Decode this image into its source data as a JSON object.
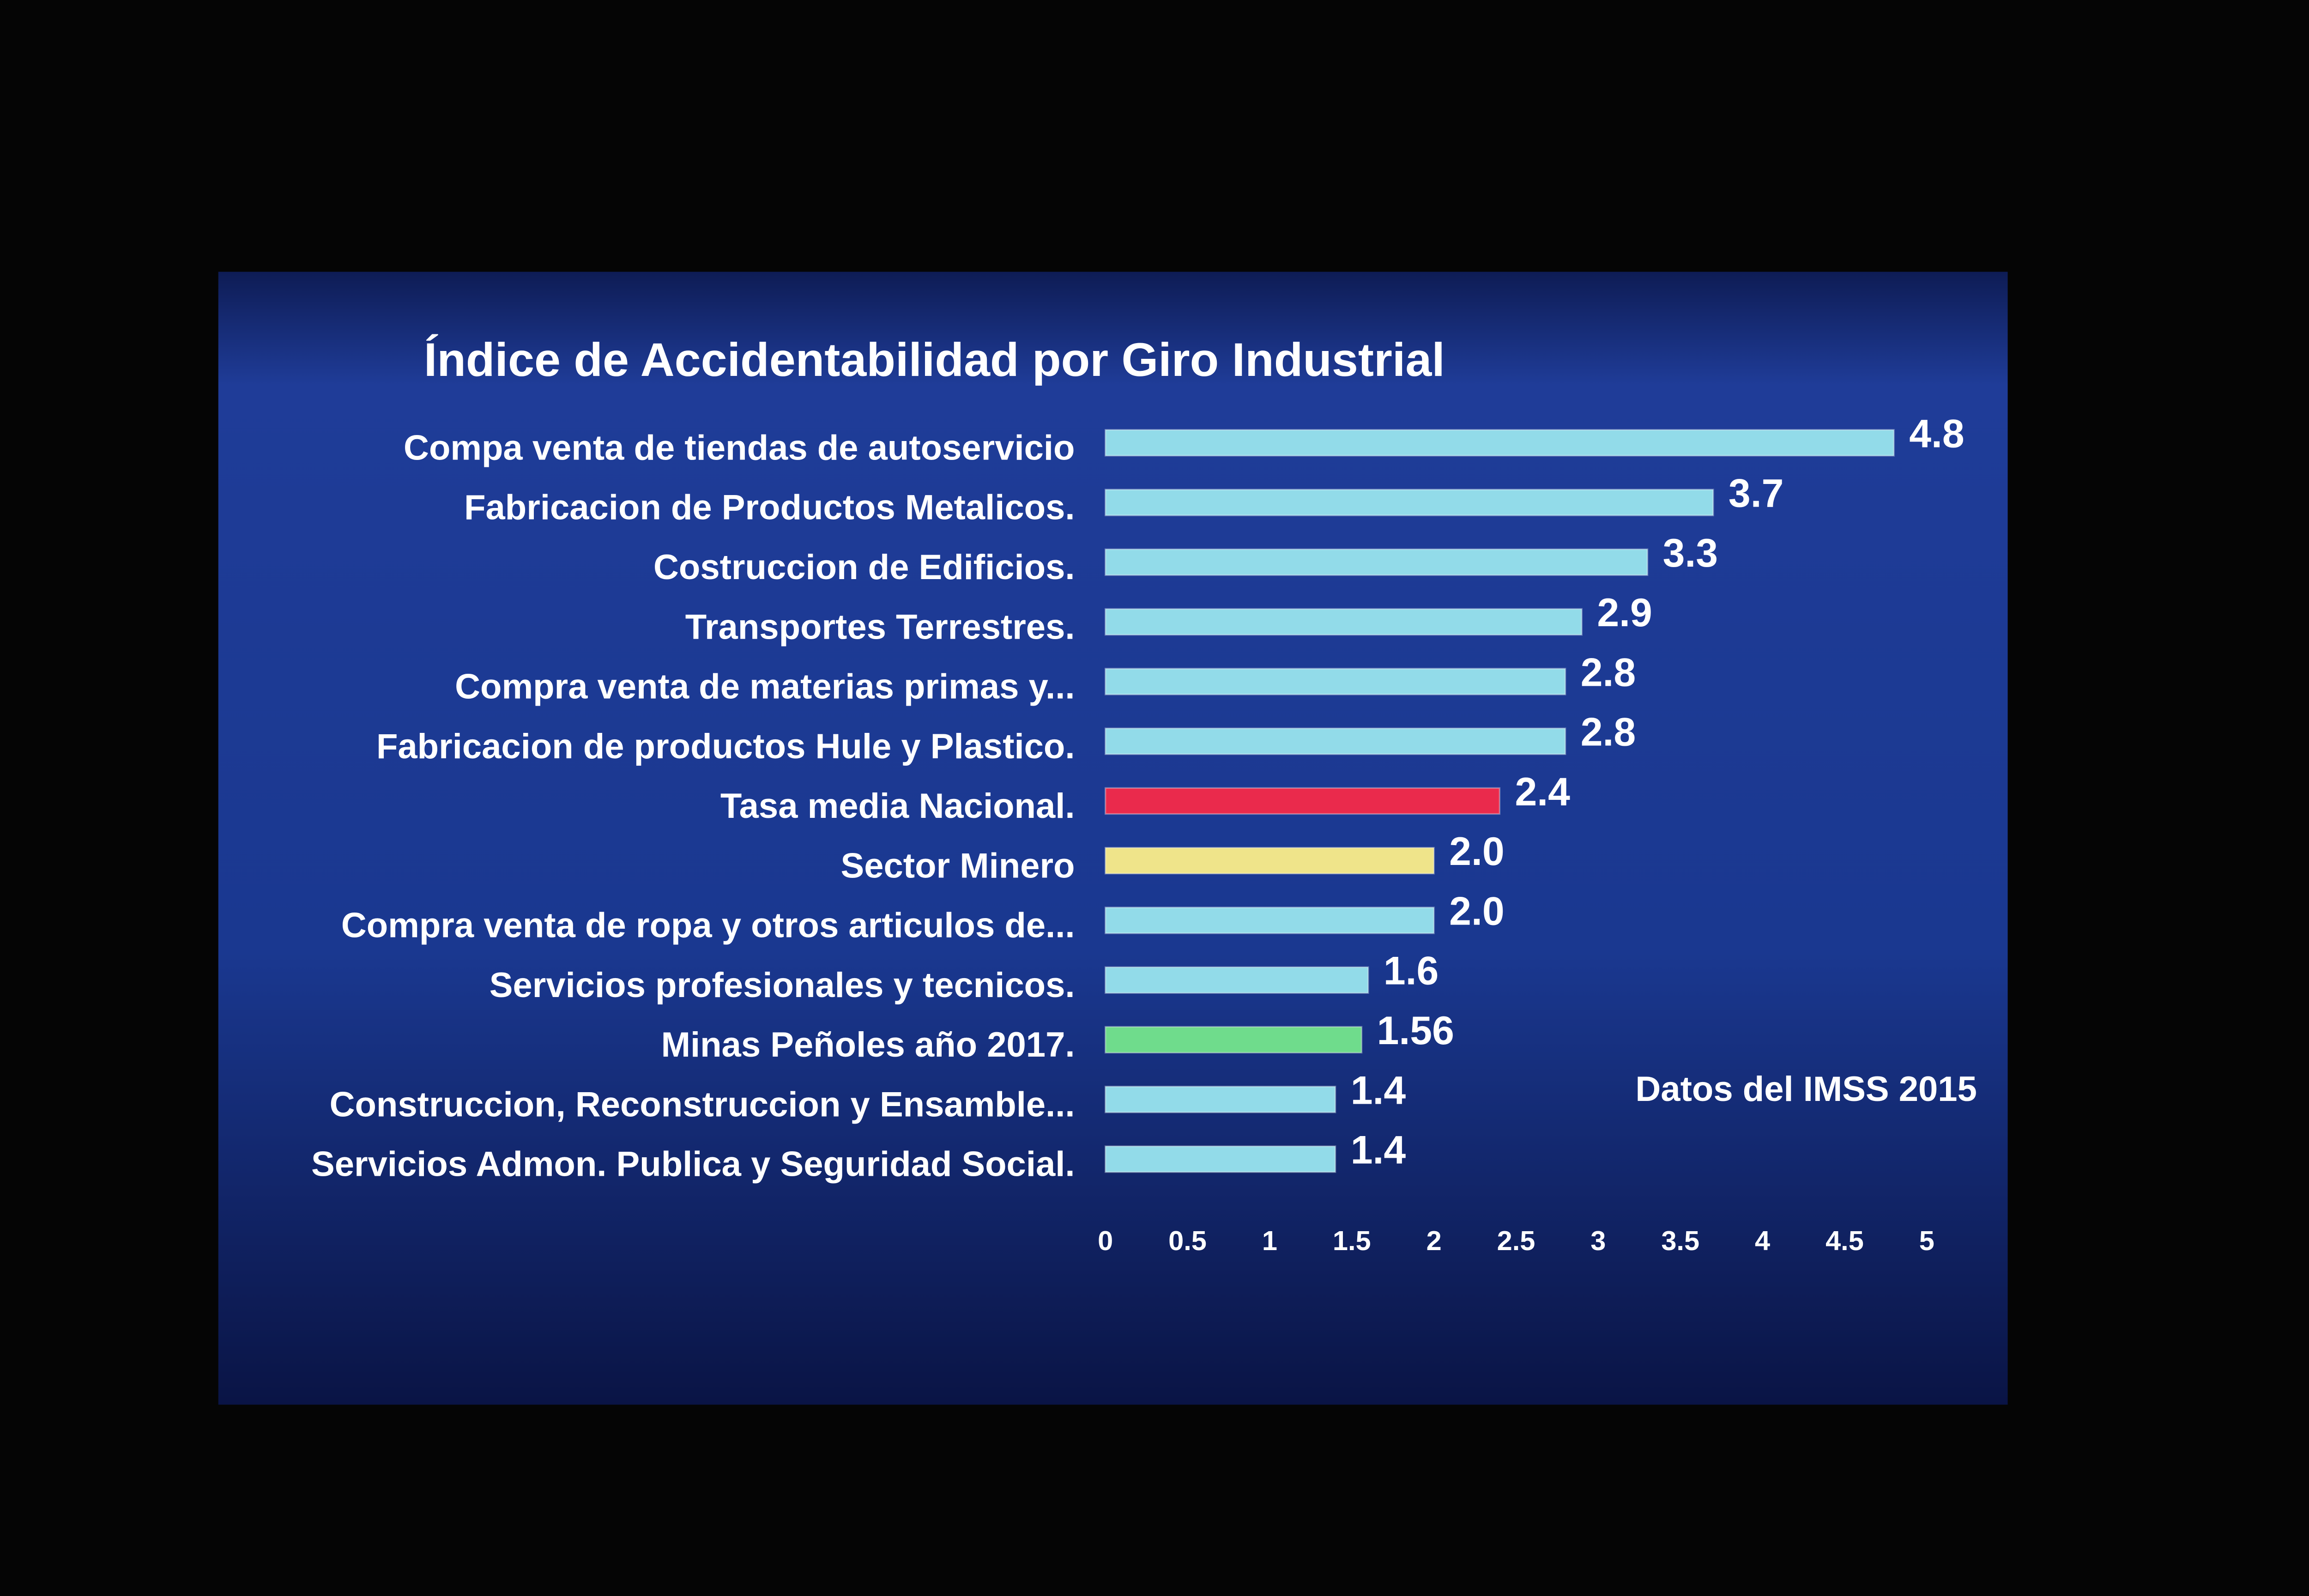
{
  "chart_data": {
    "type": "bar",
    "orientation": "horizontal",
    "title": "Índice de Accidentabilidad por Giro Industrial",
    "annotation": "Datos del IMSS 2015",
    "categories": [
      "Compa venta de tiendas de autoservicio",
      "Fabricacion de Productos Metalicos.",
      "Costruccion de Edificios.",
      "Transportes Terrestres.",
      "Compra venta de materias primas y...",
      "Fabricacion de productos Hule y Plastico.",
      "Tasa media Nacional.",
      "Sector Minero",
      "Compra venta de ropa y otros articulos de...",
      "Servicios profesionales y tecnicos.",
      "Minas Peñoles año 2017.",
      "Construccion, Reconstruccion y Ensamble...",
      "Servicios Admon. Publica y Seguridad Social."
    ],
    "values": [
      4.8,
      3.7,
      3.3,
      2.9,
      2.8,
      2.8,
      2.4,
      2.0,
      2.0,
      1.6,
      1.56,
      1.4,
      1.4
    ],
    "value_labels": [
      "4.8",
      "3.7",
      "3.3",
      "2.9",
      "2.8",
      "2.8",
      "2.4",
      "2.0",
      "2.0",
      "1.6",
      "1.56",
      "1.4",
      "1.4"
    ],
    "colors": [
      "#92dbe9",
      "#92dbe9",
      "#92dbe9",
      "#92dbe9",
      "#92dbe9",
      "#92dbe9",
      "#ea2a4c",
      "#efe48a",
      "#92dbe9",
      "#92dbe9",
      "#6fdc8c",
      "#92dbe9",
      "#92dbe9"
    ],
    "xlim": [
      0,
      5
    ],
    "xticks": [
      0,
      0.5,
      1,
      1.5,
      2,
      2.5,
      3,
      3.5,
      4,
      4.5,
      5
    ]
  }
}
